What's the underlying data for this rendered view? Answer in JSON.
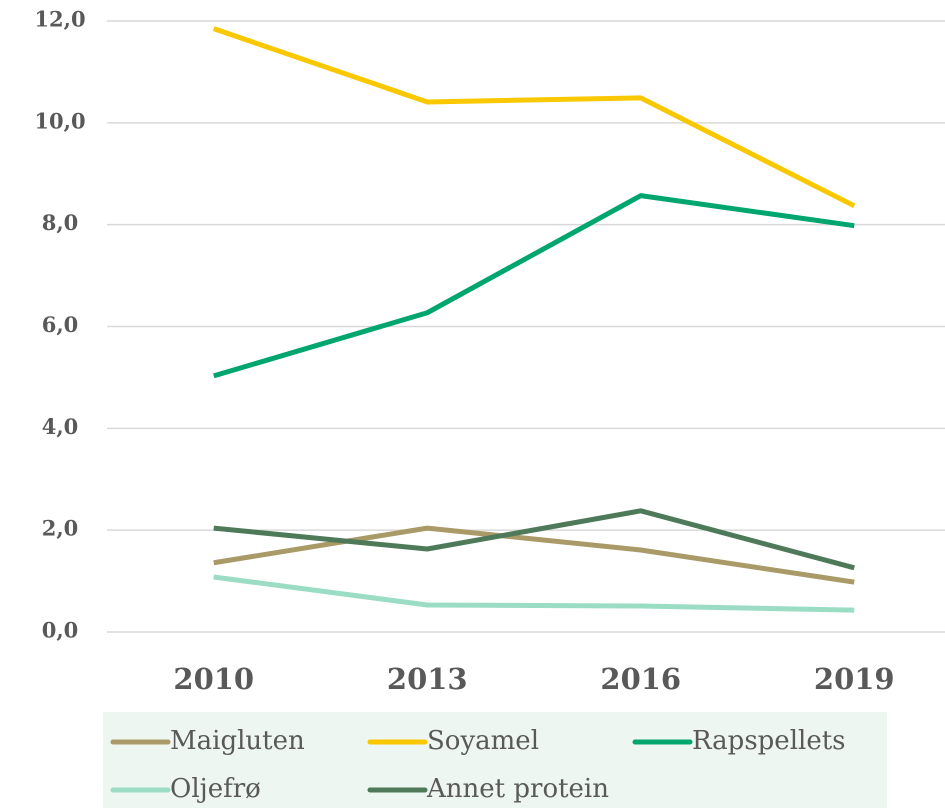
{
  "chart_data": {
    "type": "line",
    "categories": [
      "2010",
      "2013",
      "2016",
      "2019"
    ],
    "series": [
      {
        "name": "Maigluten",
        "color": "#a99a68",
        "values": [
          1.36,
          2.04,
          1.61,
          0.98
        ]
      },
      {
        "name": "Soyamel",
        "color": "#f9c800",
        "values": [
          11.85,
          10.41,
          10.49,
          8.37
        ]
      },
      {
        "name": "Rapspellets",
        "color": "#00a66e",
        "values": [
          5.03,
          6.27,
          8.57,
          7.98
        ]
      },
      {
        "name": "Oljefrø",
        "color": "#9bdcc4",
        "values": [
          1.08,
          0.53,
          0.51,
          0.43
        ]
      },
      {
        "name": "Annet protein",
        "color": "#4e7a5a",
        "values": [
          2.04,
          1.63,
          2.38,
          1.26
        ]
      }
    ],
    "ylim": [
      0,
      12
    ],
    "yticks": [
      {
        "value": 0,
        "label": "0,0"
      },
      {
        "value": 2,
        "label": "2,0"
      },
      {
        "value": 4,
        "label": "4,0"
      },
      {
        "value": 6,
        "label": "6,0"
      },
      {
        "value": 8,
        "label": "8,0"
      },
      {
        "value": 10,
        "label": "10,0"
      },
      {
        "value": 12,
        "label": "12,0"
      }
    ],
    "grid": true,
    "legend": "bottom"
  }
}
